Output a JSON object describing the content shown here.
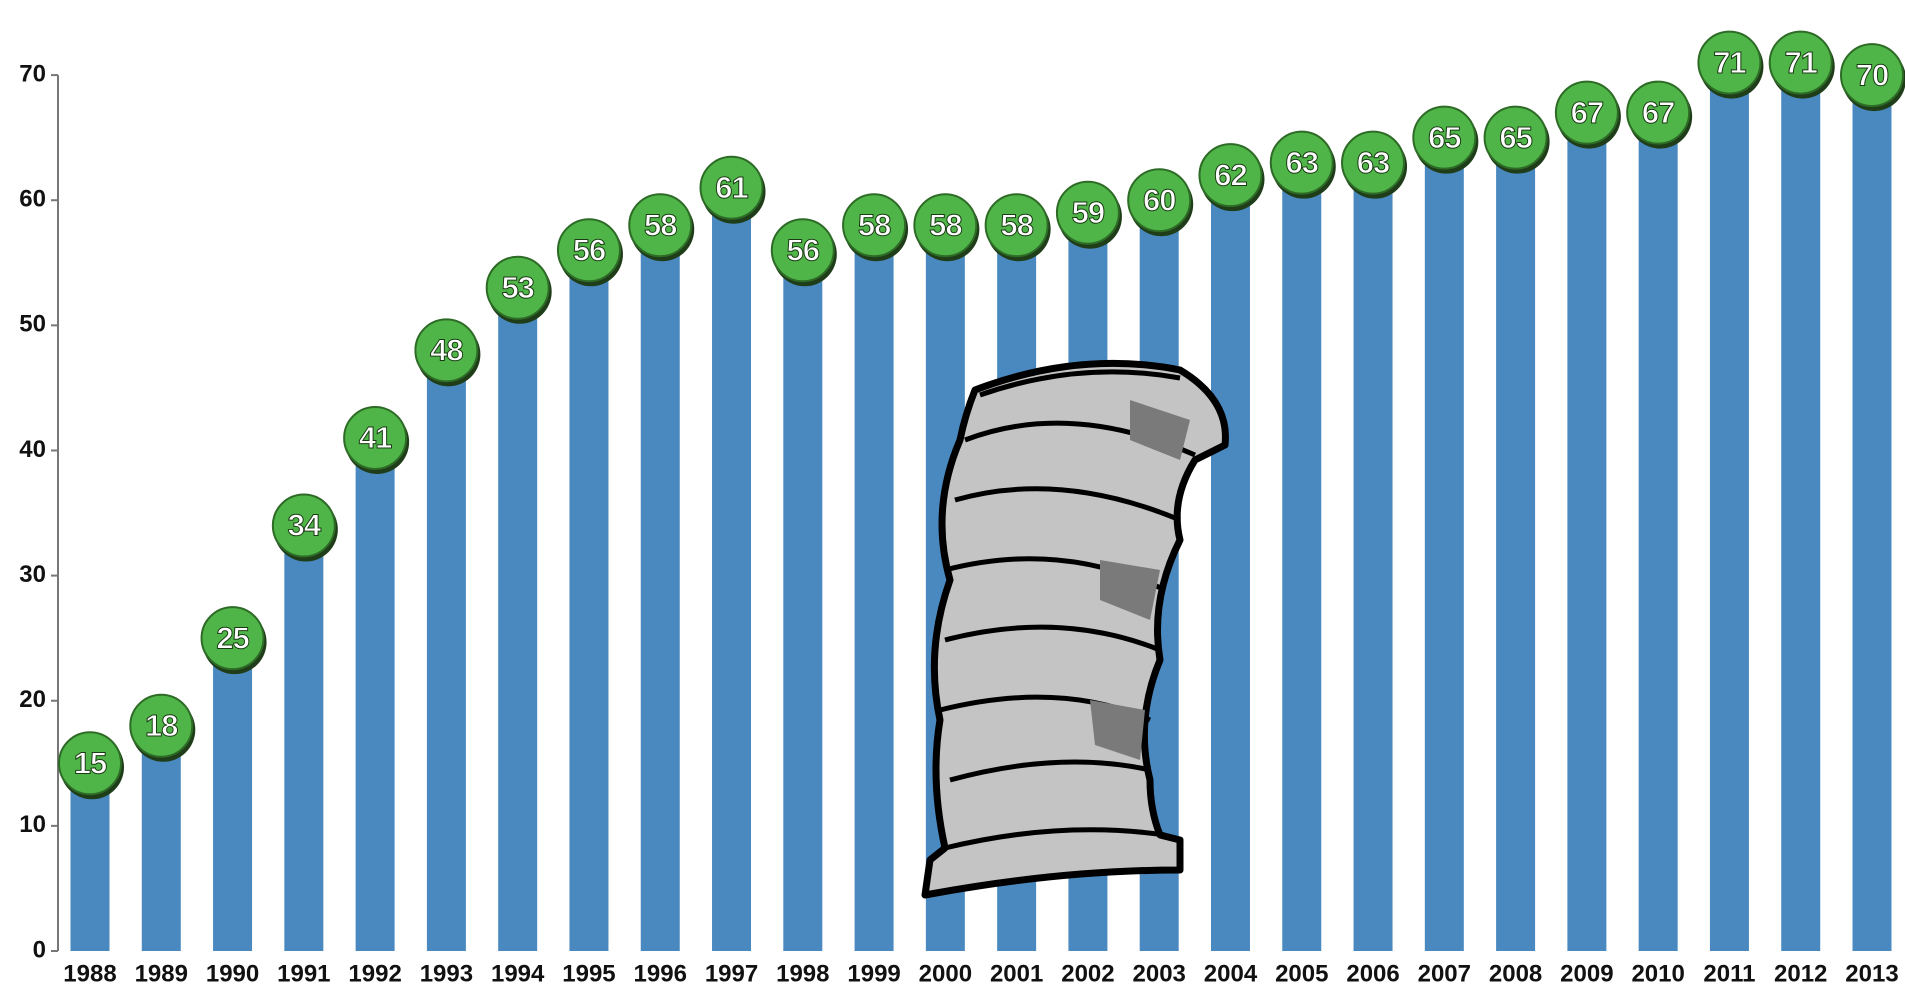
{
  "chart_data": {
    "type": "bar",
    "categories": [
      "1988",
      "1989",
      "1990",
      "1991",
      "1992",
      "1993",
      "1994",
      "1995",
      "1996",
      "1997",
      "1998",
      "1999",
      "2000",
      "2001",
      "2002",
      "2003",
      "2004",
      "2005",
      "2006",
      "2007",
      "2008",
      "2009",
      "2010",
      "2011",
      "2012",
      "2013"
    ],
    "values": [
      15,
      18,
      25,
      34,
      41,
      48,
      53,
      56,
      58,
      61,
      56,
      58,
      58,
      58,
      59,
      60,
      62,
      63,
      63,
      65,
      65,
      67,
      67,
      71,
      71,
      70
    ],
    "color": "#4a89bf",
    "label_color": "#4fb548",
    "ylim": [
      0,
      76
    ],
    "yticks": [
      0,
      10,
      20,
      30,
      40,
      50,
      60,
      70
    ],
    "grid": false
  }
}
